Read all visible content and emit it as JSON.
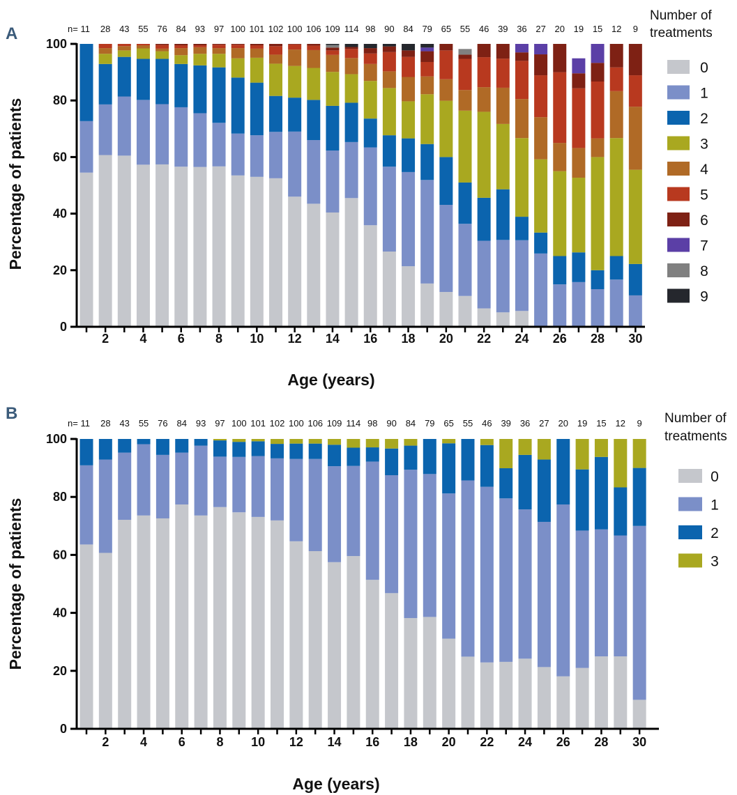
{
  "colors": {
    "0": "#c5c7cc",
    "1": "#7b8fc8",
    "2": "#0b64ae",
    "3": "#a9a820",
    "4": "#b06a26",
    "5": "#b8391f",
    "6": "#7e2114",
    "7": "#5b3fa6",
    "8": "#808080",
    "9": "#25272d"
  },
  "chart_data": [
    {
      "panel": "A",
      "type": "bar",
      "stacked": true,
      "n_prefix": "n=",
      "n": [
        "11",
        "28",
        "43",
        "55",
        "76",
        "84",
        "93",
        "97",
        "100",
        "101",
        "102",
        "100",
        "106",
        "109",
        "114",
        "98",
        "90",
        "84",
        "79",
        "65",
        "55",
        "46",
        "39",
        "36",
        "27",
        "20",
        "19",
        "15",
        "12",
        "9"
      ],
      "x": [
        1,
        2,
        3,
        4,
        5,
        6,
        7,
        8,
        9,
        10,
        11,
        12,
        13,
        14,
        15,
        16,
        17,
        18,
        19,
        20,
        21,
        22,
        23,
        24,
        25,
        26,
        27,
        28,
        29,
        30
      ],
      "x_ticks": [
        "2",
        "4",
        "6",
        "8",
        "10",
        "12",
        "14",
        "16",
        "18",
        "20",
        "22",
        "24",
        "26",
        "28",
        "30"
      ],
      "y_ticks": [
        "0",
        "20",
        "40",
        "60",
        "80",
        "100"
      ],
      "ylim": [
        0,
        100
      ],
      "xlabel": "Age (years)",
      "ylabel": "Percentage of patients",
      "legend_title": [
        "Number of",
        "treatments"
      ],
      "series": [
        {
          "name": "0",
          "values": [
            54.5,
            60.7,
            60.5,
            57.3,
            57.4,
            56.6,
            56.5,
            56.7,
            53.5,
            53.0,
            52.5,
            46.0,
            43.5,
            40.4,
            45.5,
            35.9,
            26.6,
            21.4,
            15.3,
            12.3,
            10.9,
            6.5,
            5.1,
            5.6,
            0,
            0,
            0,
            0,
            0,
            0
          ]
        },
        {
          "name": "1",
          "values": [
            18.2,
            17.9,
            20.9,
            22.9,
            21.3,
            21.0,
            19.0,
            15.4,
            14.8,
            14.7,
            16.4,
            23.0,
            22.5,
            21.9,
            19.8,
            27.5,
            30.0,
            33.3,
            36.6,
            30.8,
            25.5,
            23.9,
            25.6,
            25.0,
            25.9,
            15.0,
            15.8,
            13.3,
            16.7,
            11.1
          ]
        },
        {
          "name": "2",
          "values": [
            27.3,
            14.3,
            14.0,
            14.5,
            16.0,
            15.3,
            16.9,
            19.6,
            19.8,
            18.6,
            12.7,
            12.0,
            14.2,
            15.8,
            13.9,
            10.2,
            11.1,
            11.9,
            12.7,
            16.9,
            14.6,
            15.2,
            17.9,
            8.3,
            7.4,
            10.0,
            10.5,
            6.7,
            8.3,
            11.1
          ]
        },
        {
          "name": "3",
          "values": [
            0,
            3.6,
            2.3,
            3.7,
            2.7,
            3.1,
            4.1,
            4.8,
            6.8,
            8.8,
            11.4,
            11.2,
            11.3,
            12.0,
            10.1,
            13.3,
            16.7,
            13.1,
            17.6,
            19.9,
            25.4,
            30.4,
            23.1,
            27.8,
            25.9,
            30.0,
            26.4,
            40.0,
            41.7,
            33.3
          ]
        },
        {
          "name": "4",
          "values": [
            0,
            2.0,
            1.5,
            1.1,
            0.9,
            2.5,
            2.3,
            2.0,
            3.6,
            3.2,
            3.2,
            5.8,
            6.3,
            6.0,
            5.7,
            6.0,
            5.9,
            8.6,
            6.3,
            7.6,
            7.3,
            8.7,
            12.8,
            13.8,
            14.9,
            10.0,
            10.5,
            6.6,
            16.6,
            22.3
          ]
        },
        {
          "name": "5",
          "values": [
            0,
            1.5,
            0.8,
            0.5,
            1.3,
            1.0,
            0.7,
            1.2,
            1.2,
            1.2,
            3.0,
            1.8,
            1.6,
            1.6,
            3.2,
            3.7,
            6.8,
            7.1,
            5.1,
            10.2,
            11.0,
            10.6,
            10.3,
            13.5,
            14.8,
            25.0,
            21.1,
            20.1,
            8.4,
            11.1
          ]
        },
        {
          "name": "6",
          "values": [
            0,
            0,
            0,
            0,
            0.4,
            0.5,
            0.5,
            0.3,
            0.3,
            0.5,
            0.8,
            0.2,
            0.6,
            1.0,
            0.7,
            1.9,
            2.0,
            2.3,
            3.8,
            2.3,
            1.5,
            4.7,
            5.2,
            3.0,
            7.4,
            10.0,
            5.3,
            6.6,
            8.3,
            11.1
          ]
        },
        {
          "name": "7",
          "values": [
            0,
            0,
            0,
            0,
            0,
            0,
            0,
            0,
            0,
            0,
            0,
            0,
            0,
            0,
            0,
            0,
            0,
            0,
            1.3,
            0,
            0,
            0,
            0,
            3.0,
            3.7,
            0,
            5.3,
            6.7,
            0,
            0
          ]
        },
        {
          "name": "8",
          "values": [
            0,
            0,
            0,
            0,
            0,
            0,
            0,
            0,
            0,
            0,
            0,
            0,
            0,
            0.9,
            0,
            0,
            0,
            0,
            0,
            0,
            2.0,
            0,
            0,
            0,
            0,
            0,
            0,
            0,
            0,
            0
          ]
        },
        {
          "name": "9",
          "values": [
            0,
            0,
            0,
            0,
            0,
            0,
            0,
            0,
            0,
            0,
            0,
            0,
            0,
            0.4,
            1.1,
            1.5,
            0.9,
            2.3,
            1.3,
            0,
            0,
            0,
            0,
            0,
            0,
            0,
            0,
            0,
            0,
            0
          ]
        }
      ]
    },
    {
      "panel": "B",
      "type": "bar",
      "stacked": true,
      "n_prefix": "n=",
      "n": [
        "11",
        "28",
        "43",
        "55",
        "76",
        "84",
        "93",
        "97",
        "100",
        "101",
        "102",
        "100",
        "106",
        "109",
        "114",
        "98",
        "90",
        "84",
        "79",
        "65",
        "55",
        "46",
        "39",
        "36",
        "27",
        "20",
        "19",
        "15",
        "12",
        "9"
      ],
      "x": [
        1,
        2,
        3,
        4,
        5,
        6,
        7,
        8,
        9,
        10,
        11,
        12,
        13,
        14,
        15,
        16,
        17,
        18,
        19,
        20,
        21,
        22,
        23,
        24,
        25,
        26,
        27,
        28,
        29,
        30
      ],
      "x_ticks": [
        "2",
        "4",
        "6",
        "8",
        "10",
        "12",
        "14",
        "16",
        "18",
        "20",
        "22",
        "24",
        "26",
        "28",
        "30"
      ],
      "y_ticks": [
        "0",
        "20",
        "40",
        "60",
        "80",
        "100"
      ],
      "ylim": [
        0,
        100
      ],
      "xlabel": "Age (years)",
      "ylabel": "Percentage of patients",
      "legend_title": [
        "Number of",
        "treatments"
      ],
      "series": [
        {
          "name": "0",
          "values": [
            63.6,
            60.7,
            72.1,
            73.6,
            72.6,
            77.4,
            73.6,
            76.5,
            74.7,
            73.1,
            71.9,
            64.7,
            61.3,
            57.5,
            59.6,
            51.4,
            46.8,
            38.2,
            38.6,
            31.1,
            24.9,
            22.9,
            23.1,
            24.2,
            21.3,
            18.1,
            21.0,
            25.0,
            25.0,
            10.0
          ]
        },
        {
          "name": "1",
          "values": [
            27.3,
            32.2,
            23.2,
            24.6,
            21.9,
            17.9,
            24.1,
            17.4,
            19.1,
            21.0,
            21.4,
            28.4,
            31.8,
            33.1,
            31.1,
            40.8,
            40.7,
            51.2,
            49.3,
            50.1,
            60.8,
            60.6,
            56.4,
            51.5,
            50.1,
            59.3,
            47.4,
            43.8,
            41.7,
            60.0
          ]
        },
        {
          "name": "2",
          "values": [
            9.1,
            7.1,
            4.7,
            1.8,
            5.5,
            4.7,
            2.3,
            5.6,
            5.2,
            5.1,
            5.0,
            5.3,
            5.3,
            7.4,
            6.3,
            4.9,
            9.2,
            8.3,
            12.1,
            17.3,
            14.3,
            14.4,
            10.4,
            18.8,
            21.5,
            22.6,
            21.1,
            25.0,
            16.6,
            20.0
          ]
        },
        {
          "name": "3",
          "values": [
            0,
            0,
            0,
            0,
            0,
            0,
            0,
            0.5,
            1.0,
            0.8,
            1.7,
            1.6,
            1.6,
            2.0,
            3.0,
            2.9,
            3.3,
            2.3,
            0,
            1.5,
            0,
            2.1,
            10.1,
            5.5,
            7.1,
            0,
            10.5,
            6.2,
            16.7,
            10.0
          ]
        }
      ]
    }
  ]
}
